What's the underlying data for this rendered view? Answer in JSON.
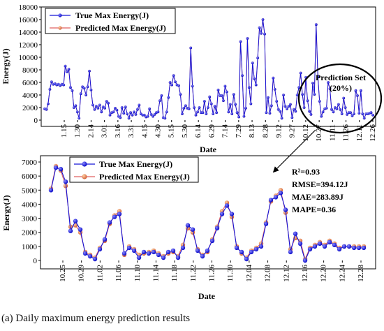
{
  "caption": {
    "tag": "(a)",
    "text": "Daily maximum energy prediction results"
  },
  "chart_data": [
    {
      "type": "line",
      "xlabel": "Date",
      "ylabel": "Energy(J)",
      "ylim": [
        0,
        18000
      ],
      "yticks": [
        0,
        2000,
        4000,
        6000,
        8000,
        10000,
        12000,
        14000,
        16000,
        18000
      ],
      "xtick_labels": [
        "1.15",
        "1.30",
        "2.14",
        "3.01",
        "3.16",
        "3.31",
        "4.15",
        "4.30",
        "5.15",
        "5.30",
        "6.14",
        "6.29",
        "7.14",
        "7.29",
        "8.13",
        "8.28",
        "9.12",
        "9.27",
        "10.12",
        "10.27",
        "11.11",
        "11.26",
        "12.11",
        "12.26"
      ],
      "legend_position": "top-left",
      "series": [
        {
          "name": "True Max Energy(J)",
          "color": "#1414d8",
          "marker": "circle",
          "values": [
            1800,
            1700,
            2600,
            4900,
            6100,
            5700,
            5800,
            5600,
            5700,
            5500,
            5700,
            5600,
            8600,
            7700,
            8100,
            5200,
            4700,
            2000,
            2300,
            1300,
            300,
            4200,
            5300,
            5100,
            4000,
            5300,
            7800,
            4800,
            2400,
            1700,
            2200,
            1900,
            2400,
            1300,
            2100,
            1900,
            3000,
            2700,
            800,
            1200,
            1300,
            1900,
            1600,
            600,
            400,
            2000,
            1100,
            2100,
            1000,
            300,
            1200,
            800,
            1300,
            900,
            1700,
            2400,
            1000,
            800,
            800,
            500,
            600,
            1800,
            900,
            600,
            900,
            1200,
            1300,
            3100,
            3900,
            400,
            300,
            1300,
            3600,
            6000,
            5600,
            7100,
            6100,
            5600,
            5500,
            4100,
            1000,
            1900,
            2300,
            1900,
            1800,
            11500,
            5400,
            2000,
            800,
            1300,
            2000,
            1200,
            1200,
            3000,
            1000,
            2000,
            3700,
            2600,
            1000,
            2200,
            1200,
            4800,
            3900,
            3900,
            3100,
            5400,
            4500,
            1300,
            2500,
            1000,
            4100,
            2500,
            1200,
            500,
            12500,
            7100,
            600,
            1900,
            13000,
            5200,
            2600,
            9100,
            6600,
            5600,
            9900,
            14700,
            13800,
            16000,
            13700,
            1200,
            3600,
            1100,
            2300,
            6700,
            4900,
            3000,
            1700,
            1400,
            300,
            4000,
            2200,
            1800,
            2200,
            2500,
            400,
            1700,
            1400,
            4000,
            5200,
            7500,
            4100,
            2000,
            6800,
            3100,
            1400,
            900,
            5900,
            4100,
            15200,
            6900,
            3000,
            600,
            1300,
            1800,
            1900,
            6000,
            5000,
            1700,
            1300,
            2000,
            1800,
            2500,
            1700,
            1000,
            3500,
            2000,
            900,
            1200,
            1200,
            700,
            1000,
            4700,
            3900,
            1100,
            4700,
            1000,
            300,
            1000,
            1000,
            1100,
            1200,
            800
          ]
        },
        {
          "name": "Predicted Max Energy(J)",
          "color": "#e06060",
          "marker": "circle",
          "values": [
            1800,
            1700,
            2600,
            4900,
            6100,
            5700,
            5800,
            5600,
            5700,
            5500,
            5700,
            5600,
            8600,
            7700,
            8100,
            5200,
            4700,
            2000,
            2300,
            1300,
            300,
            4200,
            5300,
            5100,
            4000,
            5300,
            7800,
            4800,
            2400,
            1700,
            2200,
            1900,
            2400,
            1300,
            2100,
            1900,
            3000,
            2700,
            800,
            1200,
            1300,
            1900,
            1600,
            600,
            400,
            2000,
            1100,
            2100,
            1000,
            300,
            1200,
            800,
            1300,
            900,
            1700,
            2400,
            1000,
            800,
            800,
            500,
            600,
            1800,
            900,
            600,
            900,
            1200,
            1300,
            3100,
            3900,
            400,
            300,
            1300,
            3600,
            6000,
            5600,
            7100,
            6100,
            5600,
            5500,
            4100,
            1000,
            1900,
            2300,
            1900,
            1800,
            11500,
            5400,
            2000,
            800,
            1300,
            2000,
            1200,
            1200,
            3000,
            1000,
            2000,
            3700,
            2600,
            1000,
            2200,
            1200,
            4800,
            3900,
            3900,
            3100,
            5400,
            4500,
            1300,
            2500,
            1000,
            4100,
            2500,
            1200,
            500,
            12500,
            7100,
            600,
            1900,
            13000,
            5200,
            2600,
            9100,
            6600,
            5600,
            9900,
            14700,
            13800,
            16000,
            13700,
            1200,
            3600,
            1100,
            2300,
            6700,
            4900,
            3000,
            1700,
            1400,
            300,
            4000,
            2200,
            1800,
            2200,
            2500,
            400,
            1700,
            1400,
            4000,
            5200,
            7500,
            4100,
            2000,
            6800,
            3100,
            1400,
            900,
            5900,
            4100,
            15200,
            6900,
            3000,
            600,
            1300,
            1800,
            1900,
            6000,
            5000,
            1700,
            1300,
            2000,
            1800,
            2500,
            1700,
            1000,
            3500,
            2000,
            900,
            1200,
            1200,
            700,
            1000,
            4700,
            3900,
            1100,
            4700,
            1000,
            300,
            1000,
            1000,
            1100,
            1200,
            800
          ]
        }
      ],
      "annotations": [
        {
          "text": "Prediction Set",
          "text2": "(20%)",
          "type": "ellipse"
        }
      ]
    },
    {
      "type": "line",
      "xlabel": "Date",
      "ylabel": "Energy(J)",
      "ylim": [
        0,
        7000
      ],
      "yticks": [
        0,
        1000,
        2000,
        3000,
        4000,
        5000,
        6000,
        7000
      ],
      "xtick_labels": [
        "10.25",
        "10.29",
        "11.02",
        "11.06",
        "11.10",
        "11.14",
        "11.18",
        "11.22",
        "11.26",
        "11.30",
        "12.04",
        "12.08",
        "12.12",
        "12.16",
        "12.20",
        "12.24",
        "12.28"
      ],
      "legend_position": "top-left",
      "series": [
        {
          "name": "True Max Energy(J)",
          "color": "#1414d8",
          "marker": "circle",
          "values": [
            5000,
            6600,
            6500,
            5600,
            2100,
            2800,
            2200,
            500,
            300,
            100,
            800,
            1500,
            2700,
            3100,
            3300,
            500,
            900,
            700,
            200,
            600,
            500,
            600,
            400,
            200,
            600,
            700,
            200,
            900,
            2500,
            2200,
            700,
            300,
            700,
            1400,
            2300,
            3300,
            3900,
            3300,
            900,
            600,
            100,
            600,
            800,
            1000,
            2600,
            4300,
            4500,
            4800,
            3600,
            600,
            1900,
            1200,
            0,
            800,
            1000,
            1200,
            1000,
            1300,
            1100,
            800,
            1000,
            1000,
            900,
            900,
            900
          ]
        },
        {
          "name": "Predicted Max Energy(J)",
          "color": "#e06060",
          "marker": "circle",
          "values": [
            5100,
            6700,
            6400,
            5300,
            2400,
            2500,
            2000,
            600,
            400,
            200,
            900,
            1400,
            2600,
            3200,
            3500,
            400,
            1000,
            800,
            400,
            500,
            600,
            700,
            500,
            300,
            500,
            600,
            300,
            1100,
            2300,
            2000,
            800,
            400,
            600,
            1500,
            2400,
            3500,
            4100,
            3100,
            1000,
            500,
            200,
            700,
            900,
            1200,
            2700,
            4200,
            4600,
            5000,
            3400,
            800,
            1600,
            1400,
            100,
            900,
            1100,
            1300,
            1100,
            1400,
            1200,
            900,
            1000,
            1000,
            1000,
            1000,
            1000
          ]
        }
      ],
      "annotations": [
        {
          "text": "R²=0.93"
        },
        {
          "text": "RMSE=394.12J"
        },
        {
          "text": "MAE=283.89J"
        },
        {
          "text": "MAPE=0.36"
        }
      ]
    }
  ]
}
